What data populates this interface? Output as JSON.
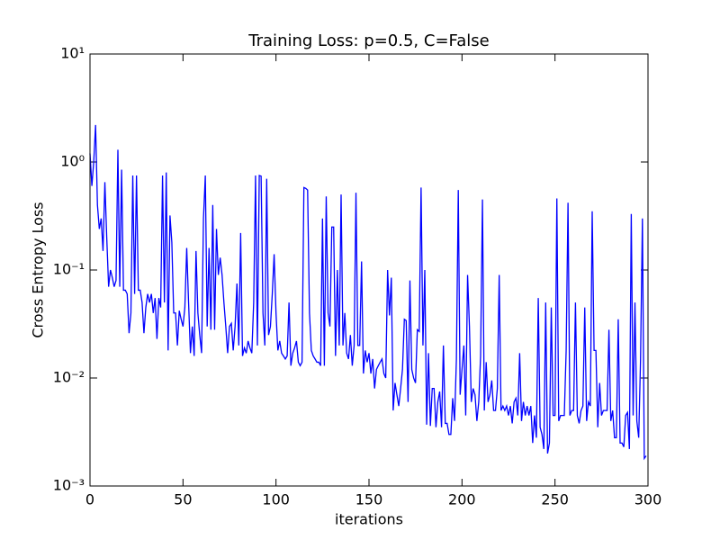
{
  "chart_data": {
    "type": "line",
    "title": "Training Loss: p=0.5, C=False",
    "x_label": "iterations",
    "y_label": "Cross Entropy Loss",
    "log_y": true,
    "grid": false,
    "xlim": [
      0,
      300
    ],
    "xticks": [
      0,
      50,
      100,
      150,
      200,
      250,
      300
    ],
    "ylim": [
      0.001,
      10
    ],
    "yticks": [
      {
        "value": 0.001,
        "label": "10⁻³"
      },
      {
        "value": 0.01,
        "label": "10⁻²"
      },
      {
        "value": 0.1,
        "label": "10⁻¹"
      },
      {
        "value": 1,
        "label": "10⁰"
      },
      {
        "value": 10,
        "label": "10¹"
      }
    ],
    "x": [
      0,
      1,
      2,
      3,
      4,
      5,
      6,
      7,
      8,
      9,
      10,
      11,
      12,
      13,
      14,
      15,
      16,
      17,
      18,
      19,
      20,
      21,
      22,
      23,
      24,
      25,
      26,
      27,
      28,
      29,
      30,
      31,
      32,
      33,
      34,
      35,
      36,
      37,
      38,
      39,
      40,
      41,
      42,
      43,
      44,
      45,
      46,
      47,
      48,
      49,
      50,
      51,
      52,
      53,
      54,
      55,
      56,
      57,
      58,
      59,
      60,
      61,
      62,
      63,
      64,
      65,
      66,
      67,
      68,
      69,
      70,
      71,
      72,
      73,
      74,
      75,
      76,
      77,
      78,
      79,
      80,
      81,
      82,
      83,
      84,
      85,
      86,
      87,
      88,
      89,
      90,
      91,
      92,
      93,
      94,
      95,
      96,
      97,
      98,
      99,
      100,
      101,
      102,
      103,
      104,
      105,
      106,
      107,
      108,
      109,
      110,
      111,
      112,
      113,
      114,
      115,
      116,
      117,
      118,
      119,
      120,
      121,
      122,
      123,
      124,
      125,
      126,
      127,
      128,
      129,
      130,
      131,
      132,
      133,
      134,
      135,
      136,
      137,
      138,
      139,
      140,
      141,
      142,
      143,
      144,
      145,
      146,
      147,
      148,
      149,
      150,
      151,
      152,
      153,
      154,
      155,
      156,
      157,
      158,
      159,
      160,
      161,
      162,
      163,
      164,
      165,
      166,
      167,
      168,
      169,
      170,
      171,
      172,
      173,
      174,
      175,
      176,
      177,
      178,
      179,
      180,
      181,
      182,
      183,
      184,
      185,
      186,
      187,
      188,
      189,
      190,
      191,
      192,
      193,
      194,
      195,
      196,
      197,
      198,
      199,
      200,
      201,
      202,
      203,
      204,
      205,
      206,
      207,
      208,
      209,
      210,
      211,
      212,
      213,
      214,
      215,
      216,
      217,
      218,
      219,
      220,
      221,
      222,
      223,
      224,
      225,
      226,
      227,
      228,
      229,
      230,
      231,
      232,
      233,
      234,
      235,
      236,
      237,
      238,
      239,
      240,
      241,
      242,
      243,
      244,
      245,
      246,
      247,
      248,
      249,
      250,
      251,
      252,
      253,
      254,
      255,
      256,
      257,
      258,
      259,
      260,
      261,
      262,
      263,
      264,
      265,
      266,
      267,
      268,
      269,
      270,
      271,
      272,
      273,
      274,
      275,
      276,
      277,
      278,
      279,
      280,
      281,
      282,
      283,
      284,
      285,
      286,
      287,
      288,
      289,
      290,
      291,
      292,
      293,
      294,
      295,
      296,
      297,
      298,
      299
    ],
    "series": [
      {
        "name": "loss",
        "color": "#0000ff",
        "values": [
          1.2,
          0.6,
          1.0,
          2.2,
          0.4,
          0.24,
          0.3,
          0.15,
          0.65,
          0.2,
          0.07,
          0.1,
          0.085,
          0.07,
          0.08,
          1.3,
          0.07,
          0.85,
          0.065,
          0.065,
          0.06,
          0.026,
          0.04,
          0.75,
          0.06,
          0.75,
          0.065,
          0.065,
          0.05,
          0.026,
          0.045,
          0.06,
          0.05,
          0.06,
          0.04,
          0.055,
          0.023,
          0.055,
          0.045,
          0.75,
          0.05,
          0.8,
          0.018,
          0.32,
          0.18,
          0.04,
          0.04,
          0.02,
          0.042,
          0.035,
          0.03,
          0.045,
          0.16,
          0.05,
          0.017,
          0.03,
          0.016,
          0.15,
          0.04,
          0.025,
          0.017,
          0.3,
          0.75,
          0.03,
          0.16,
          0.028,
          0.4,
          0.028,
          0.24,
          0.09,
          0.13,
          0.09,
          0.05,
          0.03,
          0.017,
          0.03,
          0.032,
          0.018,
          0.03,
          0.075,
          0.02,
          0.22,
          0.016,
          0.019,
          0.017,
          0.022,
          0.019,
          0.017,
          0.05,
          0.75,
          0.02,
          0.75,
          0.74,
          0.04,
          0.02,
          0.7,
          0.025,
          0.03,
          0.06,
          0.14,
          0.04,
          0.018,
          0.022,
          0.017,
          0.016,
          0.015,
          0.016,
          0.05,
          0.013,
          0.017,
          0.019,
          0.022,
          0.014,
          0.013,
          0.014,
          0.58,
          0.57,
          0.55,
          0.04,
          0.018,
          0.016,
          0.015,
          0.014,
          0.014,
          0.013,
          0.3,
          0.013,
          0.48,
          0.04,
          0.03,
          0.25,
          0.25,
          0.016,
          0.1,
          0.02,
          0.5,
          0.02,
          0.04,
          0.017,
          0.015,
          0.025,
          0.013,
          0.02,
          0.52,
          0.02,
          0.02,
          0.12,
          0.011,
          0.018,
          0.014,
          0.017,
          0.011,
          0.015,
          0.008,
          0.012,
          0.013,
          0.014,
          0.015,
          0.011,
          0.01,
          0.1,
          0.038,
          0.085,
          0.005,
          0.009,
          0.007,
          0.0055,
          0.008,
          0.012,
          0.035,
          0.034,
          0.006,
          0.08,
          0.012,
          0.01,
          0.009,
          0.028,
          0.027,
          0.58,
          0.02,
          0.1,
          0.0037,
          0.017,
          0.0036,
          0.008,
          0.008,
          0.0035,
          0.006,
          0.0075,
          0.0035,
          0.02,
          0.0038,
          0.0038,
          0.003,
          0.003,
          0.0065,
          0.004,
          0.015,
          0.55,
          0.007,
          0.012,
          0.02,
          0.0045,
          0.09,
          0.03,
          0.006,
          0.008,
          0.007,
          0.004,
          0.006,
          0.016,
          0.45,
          0.005,
          0.014,
          0.006,
          0.007,
          0.0095,
          0.005,
          0.005,
          0.008,
          0.09,
          0.005,
          0.0055,
          0.005,
          0.0055,
          0.0045,
          0.0055,
          0.0038,
          0.006,
          0.0065,
          0.0045,
          0.017,
          0.004,
          0.006,
          0.0045,
          0.0055,
          0.0045,
          0.0055,
          0.0025,
          0.0045,
          0.0028,
          0.055,
          0.0035,
          0.003,
          0.0022,
          0.05,
          0.002,
          0.0025,
          0.045,
          0.0045,
          0.0045,
          0.46,
          0.004,
          0.0045,
          0.0045,
          0.0045,
          0.018,
          0.42,
          0.0045,
          0.005,
          0.005,
          0.05,
          0.0045,
          0.0038,
          0.005,
          0.0055,
          0.045,
          0.004,
          0.006,
          0.0055,
          0.35,
          0.018,
          0.018,
          0.0035,
          0.009,
          0.0045,
          0.005,
          0.005,
          0.005,
          0.028,
          0.004,
          0.005,
          0.0028,
          0.0028,
          0.035,
          0.0025,
          0.0025,
          0.0023,
          0.0045,
          0.0048,
          0.0022,
          0.33,
          0.0045,
          0.05,
          0.004,
          0.0028,
          0.015,
          0.3,
          0.0018,
          0.0019
        ]
      }
    ]
  }
}
